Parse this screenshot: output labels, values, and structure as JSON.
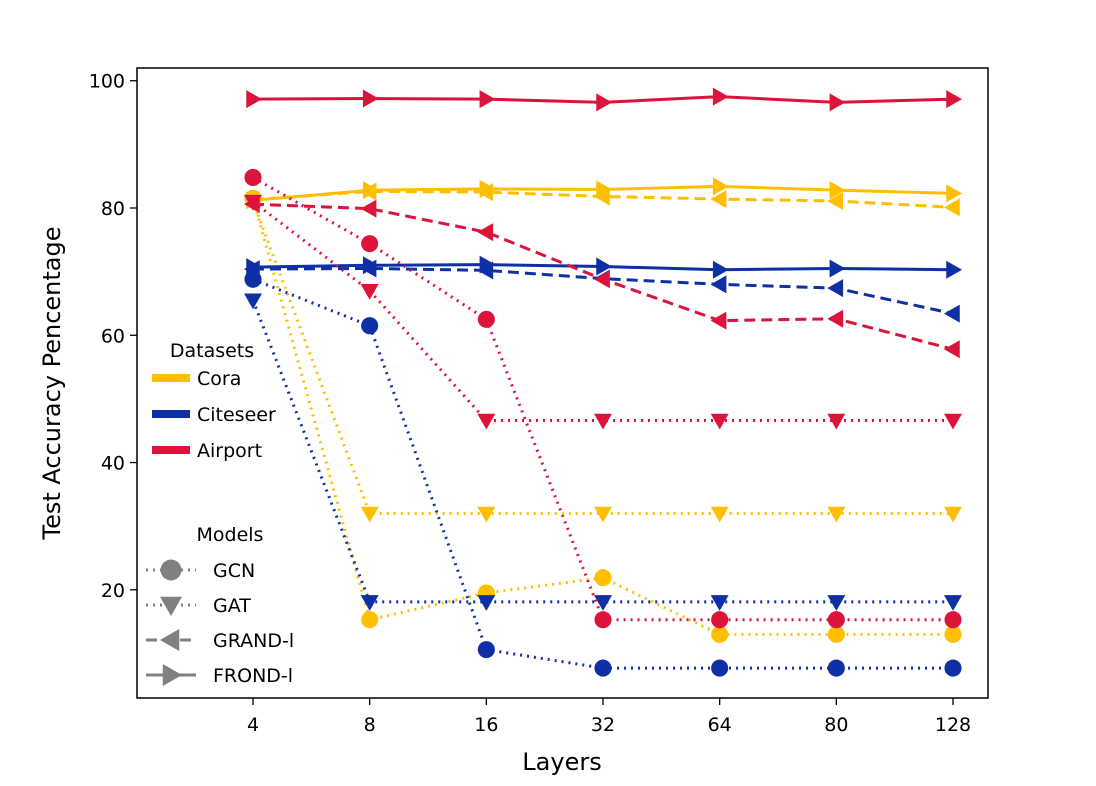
{
  "chart_data": {
    "type": "line",
    "title": "",
    "xlabel": "Layers",
    "ylabel": "Test Accuracy Pencentage",
    "categories": [
      "4",
      "8",
      "16",
      "32",
      "64",
      "80",
      "128"
    ],
    "ylim": [
      3,
      102
    ],
    "yticks": [
      20,
      40,
      60,
      80,
      100
    ],
    "grid": false,
    "datasets": [
      {
        "name": "Cora",
        "color": "#FFBF00"
      },
      {
        "name": "Citeseer",
        "color": "#0F2FA5"
      },
      {
        "name": "Airport",
        "color": "#DC143C"
      }
    ],
    "models": [
      {
        "name": "GCN",
        "linestyle": "dotted",
        "marker": "circle"
      },
      {
        "name": "GAT",
        "linestyle": "dotted",
        "marker": "triangle-down"
      },
      {
        "name": "GRAND-l",
        "linestyle": "dashed",
        "marker": "triangle-left"
      },
      {
        "name": "FROND-l",
        "linestyle": "solid",
        "marker": "triangle-right"
      }
    ],
    "series": [
      {
        "name": "Cora GCN",
        "dataset": "Cora",
        "model": "GCN",
        "values": [
          81.5,
          15.3,
          19.5,
          21.9,
          13.0,
          13.0,
          13.0
        ]
      },
      {
        "name": "Cora GAT",
        "dataset": "Cora",
        "model": "GAT",
        "values": [
          81.0,
          32.0,
          32.0,
          32.0,
          32.0,
          32.0,
          32.0
        ]
      },
      {
        "name": "Cora GRAND-l",
        "dataset": "Cora",
        "model": "GRAND-l",
        "values": [
          81.3,
          82.6,
          82.5,
          81.8,
          81.4,
          81.1,
          80.1
        ]
      },
      {
        "name": "Cora FROND-l",
        "dataset": "Cora",
        "model": "FROND-l",
        "values": [
          81.2,
          82.8,
          83.0,
          82.9,
          83.4,
          82.8,
          82.3
        ]
      },
      {
        "name": "Citeseer GCN",
        "dataset": "Citeseer",
        "model": "GCN",
        "values": [
          68.8,
          61.5,
          10.6,
          7.7,
          7.7,
          7.7,
          7.7
        ]
      },
      {
        "name": "Citeseer GAT",
        "dataset": "Citeseer",
        "model": "GAT",
        "values": [
          65.5,
          18.1,
          18.1,
          18.1,
          18.1,
          18.1,
          18.1
        ]
      },
      {
        "name": "Citeseer GRAND-l",
        "dataset": "Citeseer",
        "model": "GRAND-l",
        "values": [
          70.4,
          70.5,
          70.2,
          68.9,
          68.0,
          67.4,
          63.4
        ]
      },
      {
        "name": "Citeseer FROND-l",
        "dataset": "Citeseer",
        "model": "FROND-l",
        "values": [
          70.7,
          71.0,
          71.1,
          70.8,
          70.3,
          70.5,
          70.3
        ]
      },
      {
        "name": "Airport GCN",
        "dataset": "Airport",
        "model": "GCN",
        "values": [
          84.8,
          74.4,
          62.5,
          15.3,
          15.3,
          15.3,
          15.3
        ]
      },
      {
        "name": "Airport GAT",
        "dataset": "Airport",
        "model": "GAT",
        "values": [
          81.0,
          67.0,
          46.6,
          46.6,
          46.6,
          46.6,
          46.6
        ]
      },
      {
        "name": "Airport GRAND-l",
        "dataset": "Airport",
        "model": "GRAND-l",
        "values": [
          80.6,
          79.9,
          76.2,
          68.8,
          62.3,
          62.6,
          57.8
        ]
      },
      {
        "name": "Airport FROND-l",
        "dataset": "Airport",
        "model": "FROND-l",
        "values": [
          97.1,
          97.2,
          97.1,
          96.6,
          97.5,
          96.6,
          97.1
        ]
      }
    ],
    "legends": [
      {
        "title": "Datasets",
        "placement": "middle-left",
        "entries": [
          "Cora",
          "Citeseer",
          "Airport"
        ]
      },
      {
        "title": "Models",
        "placement": "lower-left",
        "entries": [
          "GCN",
          "GAT",
          "GRAND-l",
          "FROND-l"
        ]
      }
    ]
  }
}
